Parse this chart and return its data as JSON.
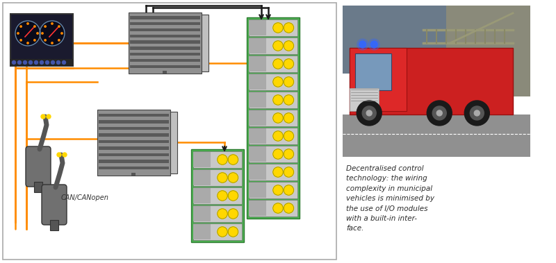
{
  "caption_text": "Decentralised control\ntechnology: the wiring\ncomplexity in municipal\nvehicles is minimised by\nthe use of I/O modules\nwith a built-in inter-\nface.",
  "caption_fontsize": 7.5,
  "bg_color": "#ffffff",
  "orange_wire": "#FF8C00",
  "black_wire": "#1a1a1a",
  "green_module_bg": "#4CAF50",
  "green_module_border": "#2e7d32",
  "gray_controller": "#787878",
  "gray_ribs": "#606060",
  "gray_side": "#b0b0b0",
  "dashboard_bg": "#1a1a2e",
  "yellow_dot": "#FFD700",
  "can_label": "CAN/CANopen"
}
